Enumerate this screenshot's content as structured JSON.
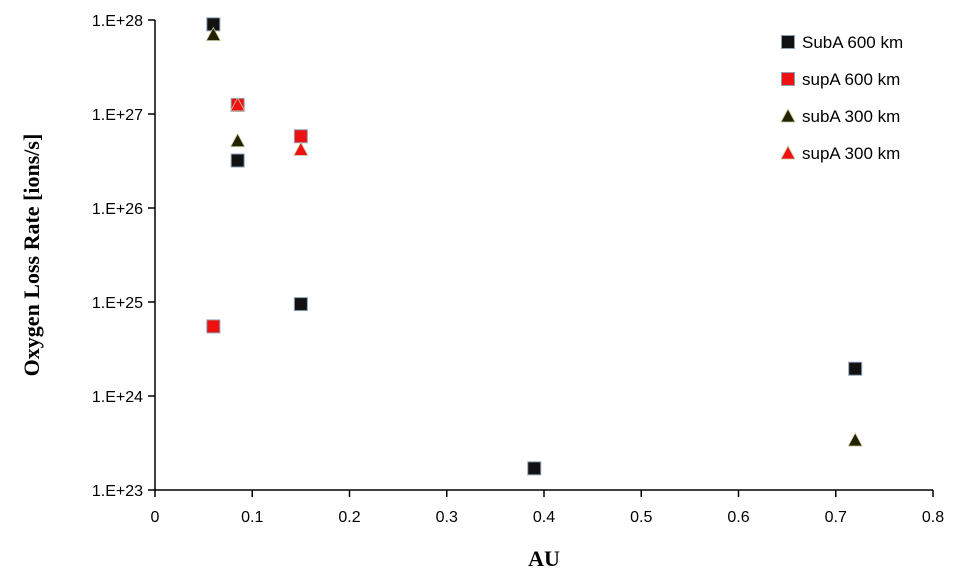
{
  "chart_data": {
    "type": "scatter",
    "title": "",
    "xlabel": "AU",
    "ylabel": "Oxygen Loss Rate [ions/s]",
    "xlim": [
      0,
      0.8
    ],
    "ylim": [
      1e+23,
      1e+28
    ],
    "yscale": "log",
    "x_ticks": [
      "0",
      "0.1",
      "0.2",
      "0.3",
      "0.4",
      "0.5",
      "0.6",
      "0.7",
      "0.8"
    ],
    "y_ticks": [
      "1.E+23",
      "1.E+24",
      "1.E+25",
      "1.E+26",
      "1.E+27",
      "1.E+28"
    ],
    "grid": false,
    "legend_position": "top-right",
    "series": [
      {
        "name": "SubA 600 km",
        "marker": "square",
        "color": "#111111",
        "points": [
          [
            0.06,
            9e+27
          ],
          [
            0.085,
            3.2e+26
          ],
          [
            0.15,
            9.5e+24
          ],
          [
            0.39,
            1.7e+23
          ],
          [
            0.72,
            1.95e+24
          ]
        ]
      },
      {
        "name": "supA 600 km",
        "marker": "square",
        "color": "#ee1111",
        "points": [
          [
            0.06,
            5.5e+24
          ],
          [
            0.085,
            1.25e+27
          ],
          [
            0.15,
            5.8e+26
          ]
        ]
      },
      {
        "name": "subA 300 km",
        "marker": "triangle",
        "color": "#222200",
        "points": [
          [
            0.06,
            7e+27
          ],
          [
            0.085,
            5.2e+26
          ],
          [
            0.72,
            3.4e+23
          ]
        ]
      },
      {
        "name": "supA 300 km",
        "marker": "triangle",
        "color": "#ee1111",
        "points": [
          [
            0.085,
            1.25e+27
          ],
          [
            0.15,
            4.2e+26
          ]
        ]
      }
    ]
  }
}
